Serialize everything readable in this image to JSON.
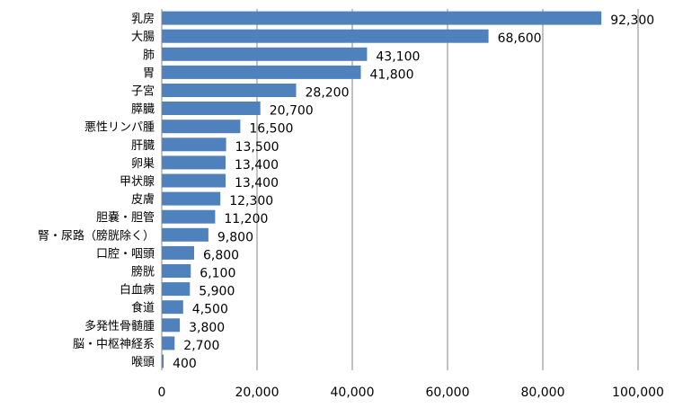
{
  "chart_data": {
    "type": "bar",
    "orientation": "horizontal",
    "title": "",
    "xlabel": "",
    "ylabel": "",
    "xlim": [
      0,
      100000
    ],
    "x_ticks": [
      0,
      20000,
      40000,
      60000,
      80000,
      100000
    ],
    "x_tick_labels": [
      "0",
      "20,000",
      "40,000",
      "60,000",
      "80,000",
      "100,000"
    ],
    "grid": "vertical",
    "legend": "none",
    "bar_color": "#4f81bd",
    "categories": [
      "乳房",
      "大腸",
      "肺",
      "胃",
      "子宮",
      "膵臓",
      "悪性リンパ腫",
      "肝臓",
      "卵巣",
      "甲状腺",
      "皮膚",
      "胆嚢・胆管",
      "腎・尿路（膀胱除く）",
      "口腔・咽頭",
      "膀胱",
      "白血病",
      "食道",
      "多発性骨髄腫",
      "脳・中枢神経系",
      "喉頭"
    ],
    "values": [
      92300,
      68600,
      43100,
      41800,
      28200,
      20700,
      16500,
      13500,
      13400,
      13400,
      12300,
      11200,
      9800,
      6800,
      6100,
      5900,
      4500,
      3800,
      2700,
      400
    ],
    "value_labels": [
      "92,300",
      "68,600",
      "43,100",
      "41,800",
      "28,200",
      "20,700",
      "16,500",
      "13,500",
      "13,400",
      "13,400",
      "12,300",
      "11,200",
      "9,800",
      "6,800",
      "6,100",
      "5,900",
      "4,500",
      "3,800",
      "2,700",
      "400"
    ]
  }
}
